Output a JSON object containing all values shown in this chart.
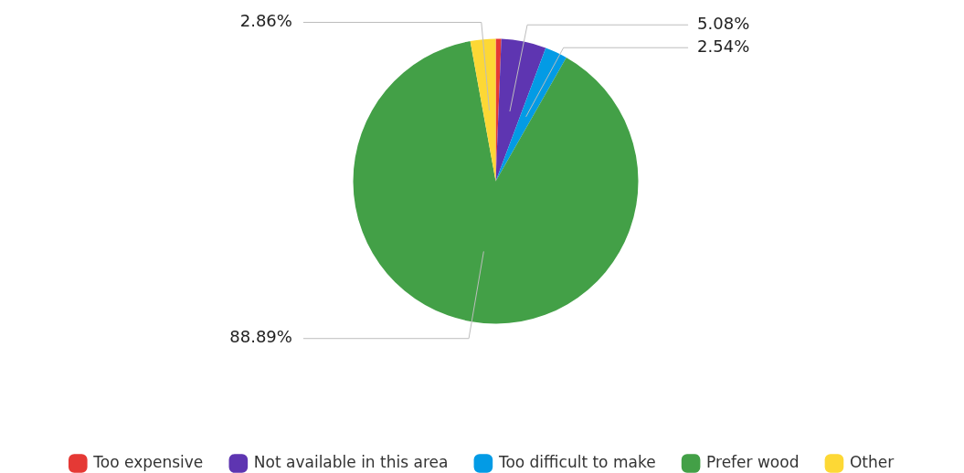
{
  "chart_data": {
    "type": "pie",
    "categories": [
      "Too expensive",
      "Not available in this area",
      "Too difficult to make",
      "Prefer wood",
      "Other"
    ],
    "values": [
      0.63,
      5.08,
      2.54,
      88.89,
      2.86
    ],
    "colors": [
      "#e53935",
      "#5e35b1",
      "#039be5",
      "#43a047",
      "#fdd835"
    ],
    "value_labels": [
      null,
      "5.08%",
      "2.54%",
      "88.89%",
      "2.86%"
    ],
    "legend": "bottom"
  }
}
